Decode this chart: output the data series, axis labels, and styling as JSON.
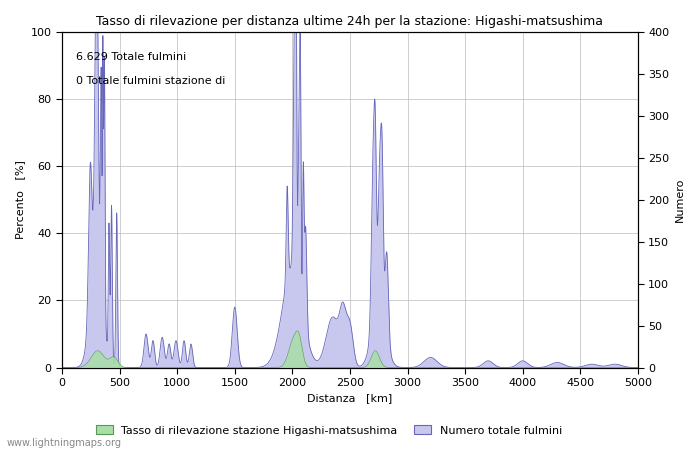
{
  "title": "Tasso di rilevazione per distanza ultime 24h per la stazione: Higashi-matsushima",
  "xlabel": "Distanza   [km]",
  "ylabel_left": "Percento   [%]",
  "ylabel_right": "Numero",
  "annotation_line1": "6.629 Totale fulmini",
  "annotation_line2": "0 Totale fulmini stazione di",
  "xlim": [
    0,
    5000
  ],
  "ylim_left": [
    0,
    100
  ],
  "ylim_right": [
    0,
    400
  ],
  "xticks": [
    0,
    500,
    1000,
    1500,
    2000,
    2500,
    3000,
    3500,
    4000,
    4500,
    5000
  ],
  "yticks_left": [
    0,
    20,
    40,
    60,
    80,
    100
  ],
  "yticks_right": [
    0,
    50,
    100,
    150,
    200,
    250,
    300,
    350,
    400
  ],
  "legend_label_green": "Tasso di rilevazione stazione Higashi-matsushima",
  "legend_label_blue": "Numero totale fulmini",
  "watermark": "www.lightningmaps.org",
  "color_green": "#aaddaa",
  "color_blue_fill": "#c8c8ee",
  "color_blue_line": "#6666bb",
  "background_color": "#ffffff",
  "grid_color": "#bbbbbb"
}
